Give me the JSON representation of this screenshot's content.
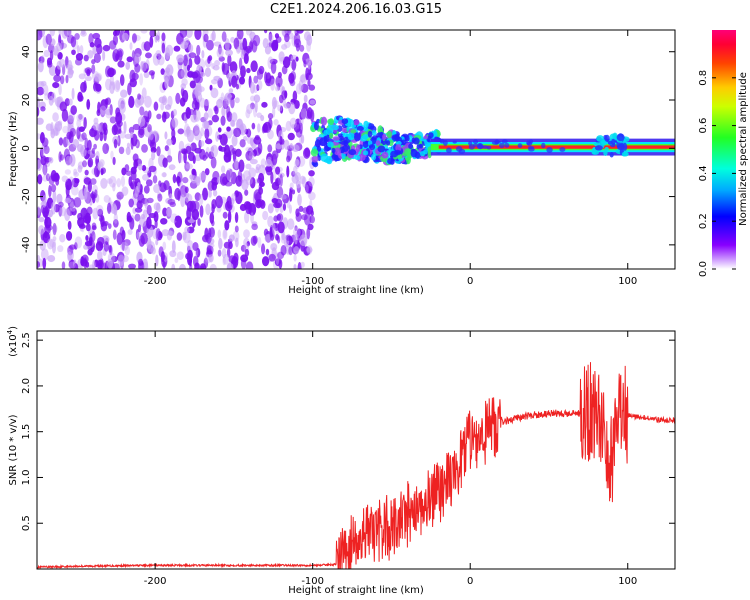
{
  "title": "C2E1.2024.206.16.03.G15",
  "colors": {
    "snr_line": "#ee2222",
    "spec_dark": "#6600ee",
    "spec_light": "#cc99ff"
  },
  "chart_data": [
    {
      "type": "heatmap",
      "name": "spectrogram",
      "title": "C2E1.2024.206.16.03.G15",
      "xlabel": "Height of straight line (km)",
      "ylabel": "Frequency (Hz)",
      "xlim": [
        -275,
        130
      ],
      "ylim": [
        -50,
        49
      ],
      "x_ticks": [
        -200,
        -100,
        0,
        100
      ],
      "x_tick_labels": [
        "-200",
        "-100",
        "0",
        "100"
      ],
      "y_ticks": [
        -40,
        -20,
        0,
        20,
        40
      ],
      "y_tick_labels": [
        "-40",
        "-20",
        "0",
        "20",
        "40"
      ],
      "colorbar": {
        "label": "Normalized spectral amplitude",
        "range": [
          0,
          1
        ],
        "ticks": [
          0.0,
          0.2,
          0.4,
          0.6,
          0.8
        ],
        "tick_labels": [
          "0.0",
          "0.2",
          "0.4",
          "0.6",
          "0.8"
        ]
      },
      "description_regions": [
        {
          "x_range": [
            -275,
            -100
          ],
          "y_range": [
            -50,
            49
          ],
          "amplitude": 0.1
        },
        {
          "x_range": [
            -100,
            -20
          ],
          "y_range": [
            -8,
            12
          ],
          "amplitude": 0.45
        },
        {
          "x_range": [
            -20,
            130
          ],
          "y_range": [
            -2,
            3
          ],
          "amplitude": 0.9
        }
      ]
    },
    {
      "type": "line",
      "name": "snr",
      "xlabel": "Height of straight line (km)",
      "ylabel": "SNR (10 * v/v)",
      "y_scale_label": "(x10",
      "y_scale_exp": "4",
      "xlim": [
        -275,
        130
      ],
      "ylim": [
        0,
        2.6
      ],
      "x_ticks": [
        -200,
        -100,
        0,
        100
      ],
      "x_tick_labels": [
        "-200",
        "-100",
        "0",
        "100"
      ],
      "y_ticks": [
        0.5,
        1.0,
        1.5,
        2.0,
        2.5
      ],
      "y_tick_labels": [
        "0.5",
        "1.0",
        "1.5",
        "2.0",
        "2.5"
      ],
      "series": [
        {
          "x": [
            -275,
            -250,
            -200,
            -150,
            -100,
            -85,
            -80,
            -70,
            -60,
            -50,
            -40,
            -30,
            -20,
            -10,
            -5,
            0,
            5,
            10,
            20,
            30,
            40,
            50,
            60,
            70,
            75,
            80,
            85,
            88,
            90,
            92,
            95,
            100,
            110,
            120,
            130
          ],
          "values": [
            0.02,
            0.03,
            0.04,
            0.04,
            0.04,
            0.05,
            0.2,
            0.35,
            0.4,
            0.45,
            0.6,
            0.7,
            0.85,
            1.0,
            1.25,
            1.35,
            1.45,
            1.5,
            1.6,
            1.65,
            1.68,
            1.7,
            1.7,
            1.7,
            1.72,
            1.7,
            1.6,
            1.3,
            1.2,
            1.5,
            1.7,
            1.68,
            1.65,
            1.63,
            1.62
          ]
        }
      ]
    }
  ]
}
